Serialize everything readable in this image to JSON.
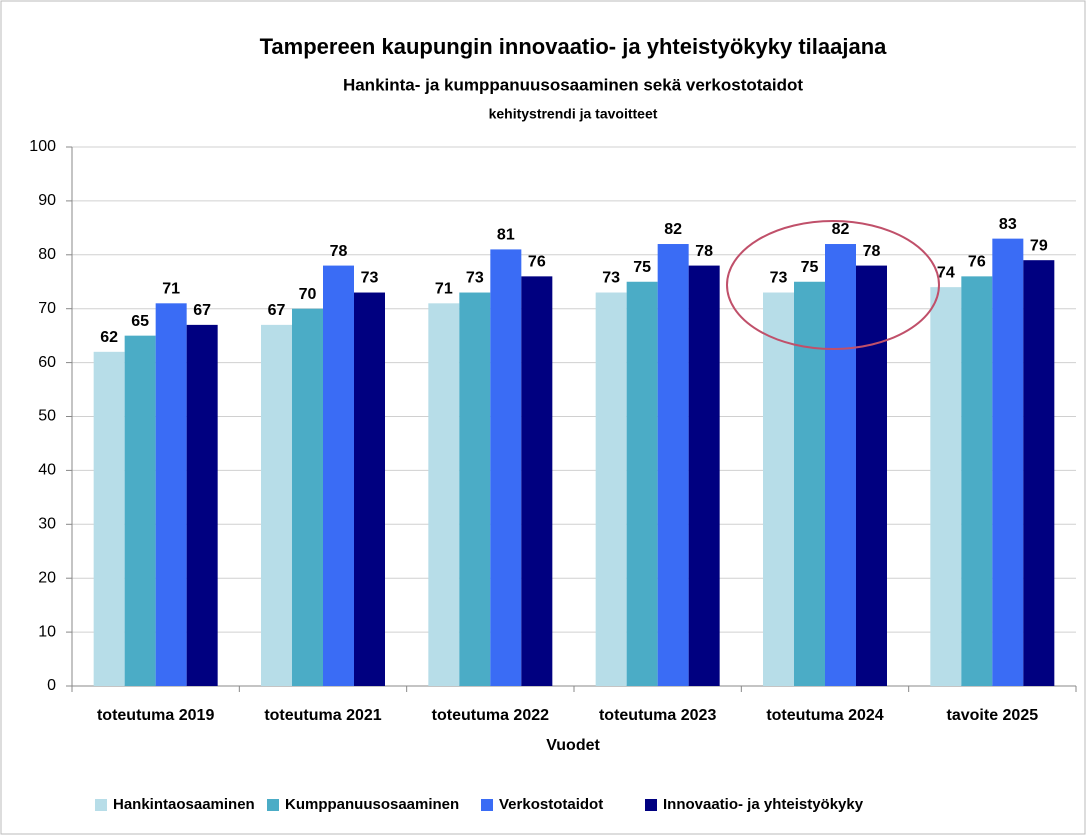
{
  "chart_data": {
    "type": "bar",
    "title": "Tampereen kaupungin innovaatio- ja yhteistyökyky tilaajana",
    "subtitle": "Hankinta- ja kumppanuusosaaminen sekä verkostotaidot",
    "subsubtitle": "kehitystrendi ja tavoitteet",
    "x_label": "Vuodet",
    "categories": [
      "toteutuma 2019",
      "toteutuma 2021",
      "toteutuma 2022",
      "toteutuma 2023",
      "toteutuma 2024",
      "tavoite 2025"
    ],
    "series": [
      {
        "name": "Hankintaosaaminen",
        "color": "#b7dde8",
        "values": [
          62,
          67,
          71,
          73,
          73,
          74
        ]
      },
      {
        "name": "Kumppanuusosaaminen",
        "color": "#4bacc6",
        "values": [
          65,
          70,
          73,
          75,
          75,
          76
        ]
      },
      {
        "name": "Verkostotaidot",
        "color": "#3a6cf5",
        "values": [
          71,
          78,
          81,
          82,
          82,
          83
        ]
      },
      {
        "name": "Innovaatio- ja yhteistyökyky",
        "color": "#000080",
        "values": [
          67,
          73,
          76,
          78,
          78,
          79
        ]
      }
    ],
    "ylim": [
      0,
      100
    ],
    "yticks": [
      0,
      10,
      20,
      30,
      40,
      50,
      60,
      70,
      80,
      90,
      100
    ],
    "grid": true,
    "legend": "bottom"
  }
}
